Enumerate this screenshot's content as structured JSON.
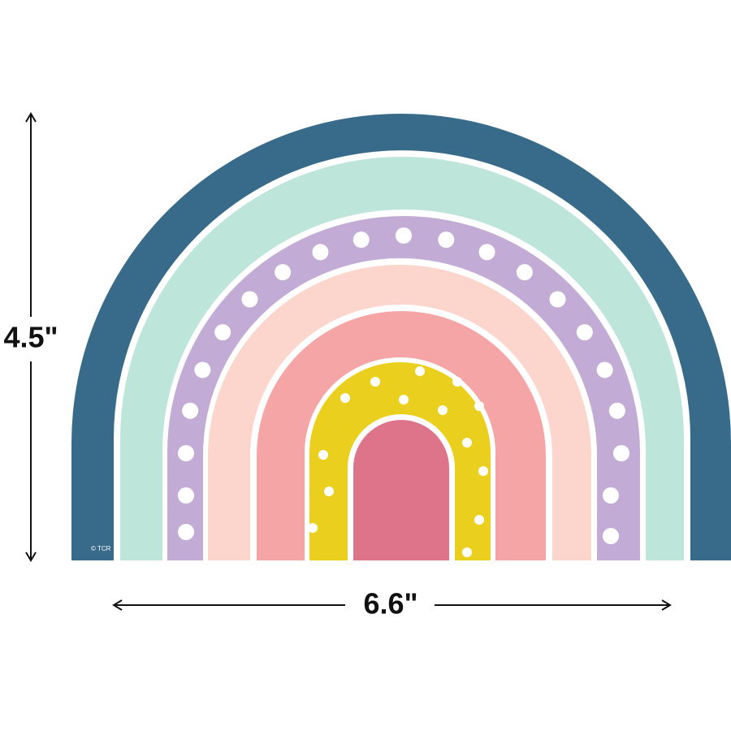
{
  "dimensions": {
    "height": "4.5\"",
    "width": "6.6\""
  },
  "copyright": "© TCR"
}
